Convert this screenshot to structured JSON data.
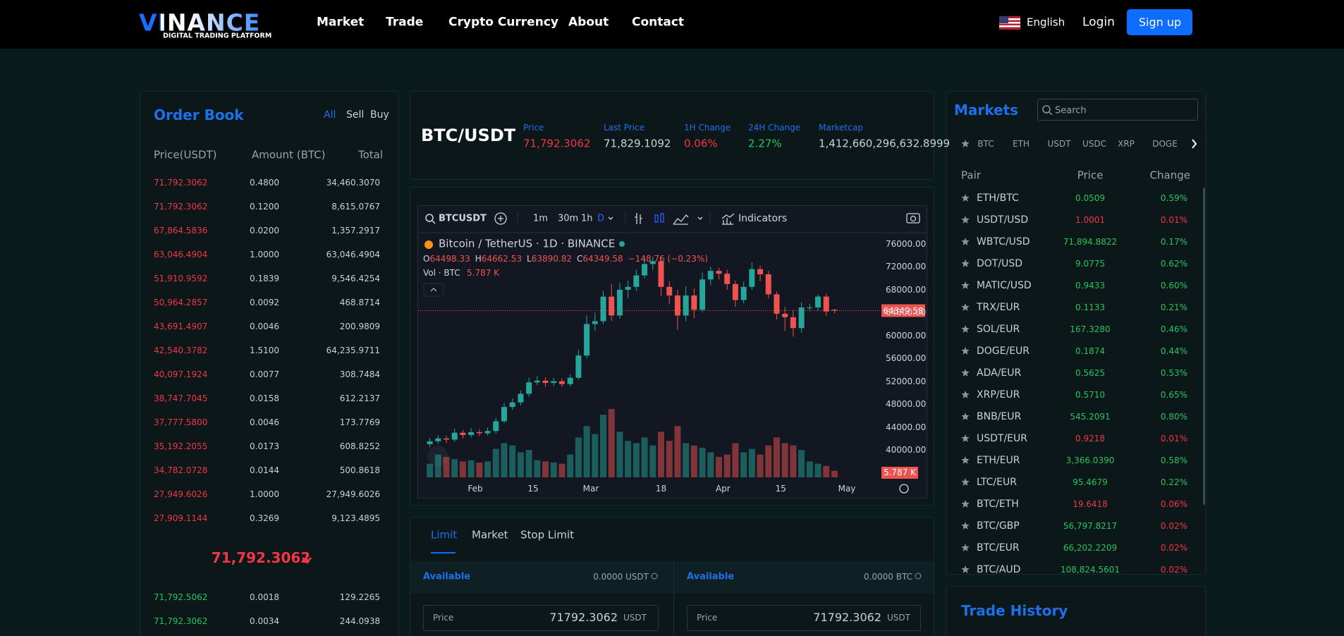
{
  "header": {
    "logo": "VINANCE",
    "tagline": "DIGITAL TRADING PLATFORM",
    "nav": [
      "Market",
      "Trade",
      "Crypto Currency",
      "About",
      "Contact"
    ],
    "language": "English",
    "login": "Login",
    "signup": "Sign up"
  },
  "order_book": {
    "title": "Order Book",
    "filters": [
      "All",
      "Sell",
      "Buy"
    ],
    "columns": [
      "Price(USDT)",
      "Amount (BTC)",
      "Total"
    ],
    "sell_rows": [
      [
        "71,792.3062",
        "0.4800",
        "34,460.3070"
      ],
      [
        "71,792.3062",
        "0.1200",
        "8,615.0767"
      ],
      [
        "67,864.5836",
        "0.0200",
        "1,357.2917"
      ],
      [
        "63,046.4904",
        "1.0000",
        "63,046.4904"
      ],
      [
        "51,910.9592",
        "0.1839",
        "9,546.4254"
      ],
      [
        "50,964.2857",
        "0.0092",
        "468.8714"
      ],
      [
        "43,691.4907",
        "0.0046",
        "200.9809"
      ],
      [
        "42,540.3782",
        "1.5100",
        "64,235.9711"
      ],
      [
        "40,097.1924",
        "0.0077",
        "308.7484"
      ],
      [
        "38,747.7045",
        "0.0158",
        "612.2137"
      ],
      [
        "37,777.5800",
        "0.0046",
        "173.7769"
      ],
      [
        "35,192.2055",
        "0.0173",
        "608.8252"
      ],
      [
        "34,782.0728",
        "0.0144",
        "500.8618"
      ],
      [
        "27,949.6026",
        "1.0000",
        "27,949.6026"
      ],
      [
        "27,909.1144",
        "0.3269",
        "9,123.4895"
      ]
    ],
    "last_price": "71,792.3062",
    "buy_rows": [
      [
        "71,792.5062",
        "0.0018",
        "129.2265"
      ],
      [
        "71,792.3062",
        "0.0034",
        "244.0938"
      ]
    ]
  },
  "ticker": {
    "pair": "BTC/USDT",
    "stats": [
      {
        "label": "Price",
        "value": "71,792.3062",
        "color": "#f23645"
      },
      {
        "label": "Last Price",
        "value": "71,829.1092",
        "color": "#c9d1d9"
      },
      {
        "label": "1H Change",
        "value": "0.06%",
        "color": "#f23645"
      },
      {
        "label": "24H Change",
        "value": "2.27%",
        "color": "#22c55e"
      },
      {
        "label": "Marketcap",
        "value": "1,412,660,296,632.8999",
        "color": "#c9d1d9"
      }
    ]
  },
  "chart_data": {
    "type": "candlestick",
    "symbol": "BTCUSDT",
    "intervals": [
      "1m",
      "30m",
      "1h",
      "D"
    ],
    "indicators": "Indicators",
    "title": "Bitcoin / TetherUS · 1D · BINANCE",
    "ohlc_keys": [
      "O",
      "H",
      "L",
      "C"
    ],
    "change_label": "−148.76 (−0.23%)",
    "volume_title": "Vol · BTC",
    "volume_label": "5.787 K",
    "open": [
      41000,
      41500,
      42000,
      41800,
      43000,
      42600,
      43100,
      42900,
      43300,
      45000,
      47500,
      48300,
      49800,
      51800,
      52100,
      51700,
      52000,
      51500,
      52600,
      56500,
      62000,
      62500,
      66800,
      63500,
      68000,
      68500,
      70500,
      72500,
      73000,
      68500,
      67000,
      63500,
      67000,
      64500,
      69800,
      71300,
      70800,
      69000,
      66200,
      68500,
      71600,
      70700,
      67200,
      63800,
      63200,
      61300,
      64900,
      64900,
      66800,
      64498.33
    ],
    "high": [
      42100,
      42600,
      42500,
      43700,
      43500,
      43800,
      43600,
      43900,
      45600,
      48200,
      49000,
      50400,
      52600,
      52900,
      52700,
      52600,
      52500,
      53200,
      57500,
      63500,
      64000,
      67800,
      69000,
      69200,
      69600,
      71500,
      73700,
      73800,
      73700,
      69500,
      68000,
      68600,
      68200,
      71000,
      72000,
      71800,
      71500,
      69600,
      69400,
      72800,
      72200,
      71300,
      67700,
      65000,
      64500,
      65800,
      65500,
      67200,
      67300,
      64662.53
    ],
    "low": [
      40500,
      41000,
      41200,
      41400,
      42000,
      42200,
      42400,
      42500,
      42800,
      44700,
      47000,
      47800,
      49300,
      51300,
      51000,
      51200,
      51000,
      51100,
      52300,
      56000,
      60800,
      62000,
      62500,
      62900,
      66500,
      67800,
      70000,
      71500,
      67000,
      65500,
      61000,
      62500,
      63000,
      64000,
      68800,
      69800,
      68000,
      65000,
      65600,
      68000,
      69500,
      66500,
      62800,
      60800,
      59800,
      60500,
      64200,
      64300,
      63400,
      63890.82
    ],
    "close": [
      41500,
      42000,
      41800,
      43000,
      42600,
      43100,
      42900,
      43300,
      45000,
      47500,
      48300,
      49800,
      51800,
      52100,
      51700,
      52000,
      51500,
      52600,
      56500,
      62000,
      62500,
      66800,
      63500,
      68000,
      68500,
      70500,
      72500,
      73000,
      68500,
      67000,
      63500,
      67000,
      64500,
      69800,
      71300,
      70800,
      69000,
      66200,
      68500,
      71600,
      70700,
      67200,
      63800,
      63200,
      61300,
      64900,
      64900,
      66800,
      64200,
      64349.58
    ],
    "volume": [
      12,
      20,
      18,
      16,
      14,
      15,
      13,
      14,
      25,
      30,
      28,
      22,
      24,
      15,
      14,
      13,
      12,
      20,
      35,
      45,
      38,
      55,
      60,
      40,
      32,
      30,
      35,
      28,
      40,
      32,
      45,
      30,
      28,
      26,
      22,
      18,
      20,
      30,
      22,
      25,
      20,
      28,
      35,
      30,
      28,
      24,
      14,
      12,
      10,
      5.787
    ],
    "xlim": [
      -1.5,
      54
    ],
    "xticks": [
      {
        "value": 5.5,
        "label": "Feb"
      },
      {
        "value": 12.5,
        "label": "15"
      },
      {
        "value": 19.5,
        "label": "Mar"
      },
      {
        "value": 28,
        "label": "18"
      },
      {
        "value": 35.5,
        "label": "Apr"
      },
      {
        "value": 42.5,
        "label": "15"
      },
      {
        "value": 50.5,
        "label": "May"
      }
    ],
    "ylim": [
      34700,
      78100
    ],
    "yticks": [
      {
        "value": 76000,
        "label": "76000.00"
      },
      {
        "value": 72000,
        "label": "72000.00"
      },
      {
        "value": 68000,
        "label": "68000.00"
      },
      {
        "value": 64000,
        "label": "64000.00"
      },
      {
        "value": 60000,
        "label": "60000.00"
      },
      {
        "value": 56000,
        "label": "56000.00"
      },
      {
        "value": 52000,
        "label": "52000.00"
      },
      {
        "value": 48000,
        "label": "48000.00"
      },
      {
        "value": 44000,
        "label": "44000.00"
      },
      {
        "value": 40000,
        "label": "40000.00"
      }
    ],
    "volume_lim": [
      0,
      65
    ],
    "up_color": "#26a69a",
    "down_color": "#ef5350",
    "grid": false
  },
  "order_form": {
    "tabs": [
      "Limit",
      "Market",
      "Stop Limit"
    ],
    "sides": [
      {
        "available_label": "Available",
        "available": "0.0000 USDT",
        "price_label": "Price",
        "price": "71792.3062",
        "price_unit": "USDT"
      },
      {
        "available_label": "Available",
        "available": "0.0000 BTC",
        "price_label": "Price",
        "price": "71792.3062",
        "price_unit": "USDT"
      }
    ]
  },
  "markets": {
    "title": "Markets",
    "search_placeholder": "Search",
    "tabs": [
      "BTC",
      "ETH",
      "USDT",
      "USDC",
      "XRP",
      "DOGE"
    ],
    "columns": [
      "Pair",
      "Price",
      "Change"
    ],
    "rows": [
      {
        "pair": "ETH/BTC",
        "price": "0.0509",
        "change": "0.59%",
        "price_color": "#22c55e",
        "change_color": "#22c55e"
      },
      {
        "pair": "USDT/USD",
        "price": "1.0001",
        "change": "0.01%",
        "price_color": "#f23645",
        "change_color": "#f23645"
      },
      {
        "pair": "WBTC/USD",
        "price": "71,894.8822",
        "change": "0.17%",
        "price_color": "#22c55e",
        "change_color": "#22c55e"
      },
      {
        "pair": "DOT/USD",
        "price": "9.0775",
        "change": "0.62%",
        "price_color": "#22c55e",
        "change_color": "#22c55e"
      },
      {
        "pair": "MATIC/USD",
        "price": "0.9433",
        "change": "0.60%",
        "price_color": "#22c55e",
        "change_color": "#22c55e"
      },
      {
        "pair": "TRX/EUR",
        "price": "0.1133",
        "change": "0.21%",
        "price_color": "#22c55e",
        "change_color": "#22c55e"
      },
      {
        "pair": "SOL/EUR",
        "price": "167.3280",
        "change": "0.46%",
        "price_color": "#22c55e",
        "change_color": "#22c55e"
      },
      {
        "pair": "DOGE/EUR",
        "price": "0.1874",
        "change": "0.44%",
        "price_color": "#22c55e",
        "change_color": "#22c55e"
      },
      {
        "pair": "ADA/EUR",
        "price": "0.5625",
        "change": "0.53%",
        "price_color": "#22c55e",
        "change_color": "#22c55e"
      },
      {
        "pair": "XRP/EUR",
        "price": "0.5710",
        "change": "0.65%",
        "price_color": "#22c55e",
        "change_color": "#22c55e"
      },
      {
        "pair": "BNB/EUR",
        "price": "545.2091",
        "change": "0.80%",
        "price_color": "#22c55e",
        "change_color": "#22c55e"
      },
      {
        "pair": "USDT/EUR",
        "price": "0.9218",
        "change": "0.01%",
        "price_color": "#f23645",
        "change_color": "#f23645"
      },
      {
        "pair": "ETH/EUR",
        "price": "3,366.0390",
        "change": "0.58%",
        "price_color": "#22c55e",
        "change_color": "#22c55e"
      },
      {
        "pair": "LTC/EUR",
        "price": "95.4679",
        "change": "0.22%",
        "price_color": "#22c55e",
        "change_color": "#22c55e"
      },
      {
        "pair": "BTC/ETH",
        "price": "19.6418",
        "change": "0.06%",
        "price_color": "#f23645",
        "change_color": "#f23645"
      },
      {
        "pair": "BTC/GBP",
        "price": "56,797.8217",
        "change": "0.02%",
        "price_color": "#22c55e",
        "change_color": "#f23645"
      },
      {
        "pair": "BTC/EUR",
        "price": "66,202.2209",
        "change": "0.02%",
        "price_color": "#22c55e",
        "change_color": "#f23645"
      },
      {
        "pair": "BTC/AUD",
        "price": "108,824.5601",
        "change": "0.02%",
        "price_color": "#22c55e",
        "change_color": "#f23645"
      }
    ]
  },
  "trade_history": {
    "title": "Trade History"
  }
}
